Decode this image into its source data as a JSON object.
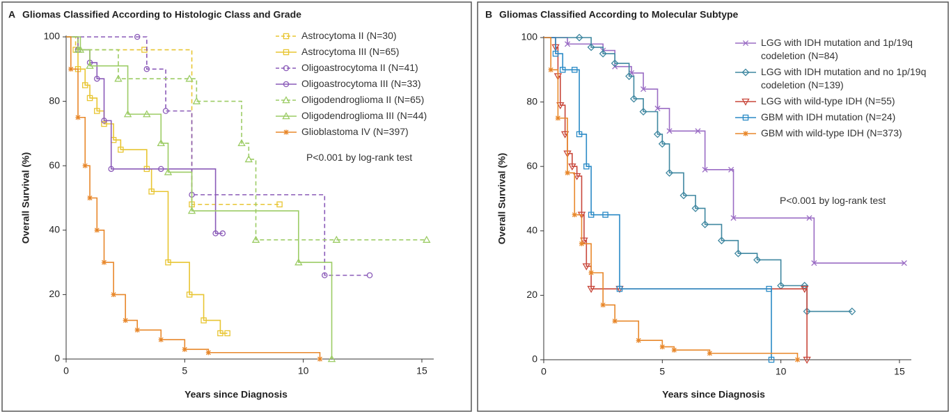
{
  "chart_data": [
    {
      "type": "line",
      "panel_label": "A",
      "title": "Gliomas Classified According to Histologic Class and Grade",
      "xlabel": "Years since Diagnosis",
      "ylabel": "Overall Survival (%)",
      "annotation": "P<0.001 by log-rank test",
      "xlim": [
        0,
        15.5
      ],
      "ylim": [
        0,
        100
      ],
      "xticks": [
        0,
        5,
        10,
        15
      ],
      "yticks": [
        0,
        20,
        40,
        60,
        80,
        100
      ],
      "step": true,
      "series": [
        {
          "name": "Astrocytoma II (N=30)",
          "color": "#e8c531",
          "dash": true,
          "marker": "square",
          "x": [
            0,
            0.4,
            3.3,
            5.3,
            9.0
          ],
          "values": [
            100,
            96,
            96,
            48,
            48
          ]
        },
        {
          "name": "Astrocytoma III (N=65)",
          "color": "#e8c531",
          "dash": false,
          "marker": "square",
          "x": [
            0,
            0.5,
            0.8,
            1.0,
            1.3,
            1.6,
            2.0,
            2.3,
            3.4,
            3.6,
            4.3,
            5.2,
            5.8,
            6.5,
            6.8
          ],
          "values": [
            100,
            90,
            85,
            81,
            77,
            73,
            68,
            65,
            59,
            52,
            30,
            20,
            12,
            8,
            8
          ]
        },
        {
          "name": "Oligoastrocytoma II (N=41)",
          "color": "#8a5ab8",
          "dash": true,
          "marker": "circle",
          "x": [
            0,
            3.0,
            3.4,
            4.2,
            5.3,
            10.9,
            12.8
          ],
          "values": [
            100,
            100,
            90,
            77,
            51,
            26,
            26
          ]
        },
        {
          "name": "Oligoastrocytoma III (N=33)",
          "color": "#8a5ab8",
          "dash": false,
          "marker": "circle",
          "x": [
            0,
            0.5,
            1.0,
            1.3,
            1.6,
            1.9,
            4.0,
            6.3,
            6.6
          ],
          "values": [
            100,
            96,
            92,
            87,
            74,
            59,
            59,
            39,
            39
          ]
        },
        {
          "name": "Oligodendroglioma II (N=65)",
          "color": "#9ccc65",
          "dash": true,
          "marker": "triangle",
          "x": [
            0,
            0.5,
            2.2,
            5.2,
            5.5,
            7.4,
            7.7,
            8.0,
            11.4,
            15.2
          ],
          "values": [
            100,
            96,
            87,
            87,
            80,
            67,
            62,
            37,
            37,
            37
          ]
        },
        {
          "name": "Oligodendroglioma III (N=44)",
          "color": "#9ccc65",
          "dash": false,
          "marker": "triangle",
          "x": [
            0,
            0.6,
            1.0,
            2.6,
            3.4,
            4.0,
            4.3,
            5.3,
            9.8,
            11.2
          ],
          "values": [
            100,
            96,
            91,
            76,
            76,
            67,
            58,
            46,
            30,
            0
          ]
        },
        {
          "name": "Glioblastoma IV (N=397)",
          "color": "#e8872a",
          "dash": false,
          "marker": "asterisk",
          "x": [
            0,
            0.2,
            0.5,
            0.8,
            1.0,
            1.3,
            1.6,
            2.0,
            2.5,
            3.0,
            4.0,
            5.0,
            6.0,
            10.7
          ],
          "values": [
            100,
            90,
            75,
            60,
            50,
            40,
            30,
            20,
            12,
            9,
            6,
            3,
            2,
            0
          ]
        }
      ]
    },
    {
      "type": "line",
      "panel_label": "B",
      "title": "Gliomas Classified According to Molecular Subtype",
      "xlabel": "Years since Diagnosis",
      "ylabel": "Overall Survival (%)",
      "annotation": "P<0.001 by log-rank test",
      "xlim": [
        0,
        15.5
      ],
      "ylim": [
        0,
        100
      ],
      "xticks": [
        0,
        5,
        10,
        15
      ],
      "yticks": [
        0,
        20,
        40,
        60,
        80,
        100
      ],
      "step": true,
      "series": [
        {
          "name": "LGG with IDH mutation and 1p/19q codeletion (N=84)",
          "color": "#9a6cc4",
          "dash": false,
          "marker": "x",
          "x": [
            0,
            1.0,
            2.5,
            3.0,
            3.7,
            4.2,
            4.8,
            5.3,
            6.5,
            6.8,
            7.9,
            8.0,
            11.2,
            11.4,
            15.2
          ],
          "values": [
            100,
            98,
            96,
            91,
            89,
            84,
            78,
            71,
            71,
            59,
            59,
            44,
            44,
            30,
            30
          ]
        },
        {
          "name": "LGG with IDH mutation and no 1p/19q codeletion (N=139)",
          "color": "#3f87a0",
          "dash": false,
          "marker": "diamond",
          "x": [
            0,
            1.5,
            2.0,
            2.5,
            3.0,
            3.6,
            3.8,
            4.2,
            4.8,
            5.0,
            5.3,
            5.9,
            6.4,
            6.8,
            7.5,
            8.2,
            9.0,
            10.0,
            11.0,
            11.1,
            13.0
          ],
          "values": [
            100,
            100,
            97,
            95,
            92,
            88,
            81,
            77,
            70,
            67,
            58,
            51,
            47,
            42,
            37,
            33,
            31,
            23,
            23,
            15,
            15
          ]
        },
        {
          "name": "LGG with wild-type IDH (N=55)",
          "color": "#c8463a",
          "dash": false,
          "marker": "triangle-down",
          "x": [
            0,
            0.5,
            0.6,
            0.7,
            0.9,
            1.0,
            1.2,
            1.4,
            1.6,
            1.7,
            1.8,
            2.0,
            3.2,
            11.0,
            11.1
          ],
          "values": [
            100,
            97,
            88,
            79,
            70,
            64,
            60,
            57,
            45,
            37,
            29,
            22,
            22,
            22,
            0
          ]
        },
        {
          "name": "GBM with IDH mutation (N=24)",
          "color": "#2a8ac6",
          "dash": false,
          "marker": "square",
          "x": [
            0,
            0.5,
            0.8,
            1.3,
            1.5,
            1.8,
            2.0,
            2.6,
            3.2,
            9.5,
            9.6
          ],
          "values": [
            100,
            95,
            90,
            90,
            70,
            60,
            45,
            45,
            22,
            22,
            0
          ]
        },
        {
          "name": "GBM with wild-type IDH (N=373)",
          "color": "#e8872a",
          "dash": false,
          "marker": "asterisk",
          "x": [
            0,
            0.3,
            0.6,
            1.0,
            1.3,
            1.6,
            2.0,
            2.5,
            3.0,
            4.0,
            5.0,
            5.5,
            7.0,
            10.7
          ],
          "values": [
            100,
            90,
            75,
            58,
            45,
            36,
            27,
            17,
            12,
            6,
            4,
            3,
            2,
            0
          ]
        }
      ]
    }
  ]
}
